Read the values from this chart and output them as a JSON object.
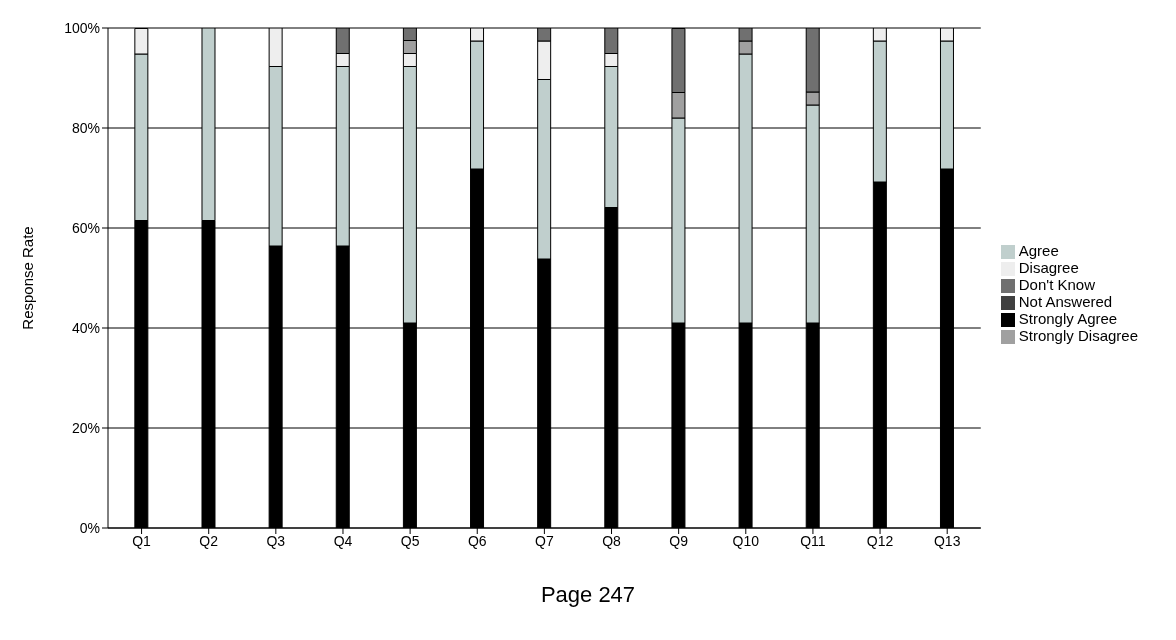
{
  "chart_data": {
    "type": "bar",
    "stacked": true,
    "ylabel": "Response Rate",
    "categories": [
      "Q1",
      "Q2",
      "Q3",
      "Q4",
      "Q5",
      "Q6",
      "Q7",
      "Q8",
      "Q9",
      "Q10",
      "Q11",
      "Q12",
      "Q13"
    ],
    "series": [
      {
        "name": "Strongly Agree",
        "color": "#000000",
        "values": [
          61.5,
          61.5,
          56.4,
          56.4,
          41.0,
          71.8,
          53.8,
          64.1,
          41.0,
          41.0,
          41.0,
          69.2,
          71.8
        ]
      },
      {
        "name": "Agree",
        "color": "#c0cfcd",
        "values": [
          33.3,
          38.5,
          35.9,
          35.9,
          51.3,
          25.6,
          35.9,
          28.2,
          41.0,
          53.8,
          43.6,
          28.2,
          25.6
        ]
      },
      {
        "name": "Disagree",
        "color": "#eeeeee",
        "values": [
          5.1,
          0,
          7.7,
          2.6,
          2.6,
          2.6,
          7.7,
          2.6,
          0,
          0,
          0,
          2.6,
          2.6
        ]
      },
      {
        "name": "Strongly Disagree",
        "color": "#a0a0a0",
        "values": [
          0,
          0,
          0,
          0,
          2.6,
          0,
          0,
          0,
          5.1,
          2.6,
          2.6,
          0,
          0
        ]
      },
      {
        "name": "Don't Know",
        "color": "#707070",
        "values": [
          0,
          0,
          0,
          5.1,
          2.6,
          0,
          2.6,
          5.1,
          12.8,
          2.6,
          12.8,
          0,
          0
        ]
      },
      {
        "name": "Not Answered",
        "color": "#404040",
        "values": [
          0,
          0,
          0,
          0,
          0,
          0,
          0,
          0,
          0,
          0,
          0,
          0,
          0
        ]
      }
    ],
    "ylim": [
      0,
      100
    ],
    "yticks": [
      {
        "value": 0,
        "label": "0%"
      },
      {
        "value": 20,
        "label": "20%"
      },
      {
        "value": 40,
        "label": "40%"
      },
      {
        "value": 60,
        "label": "60%"
      },
      {
        "value": 80,
        "label": "80%"
      },
      {
        "value": 100,
        "label": "100%"
      }
    ],
    "grid": "y",
    "legend": "right",
    "annotations": [
      "Page 247"
    ]
  }
}
